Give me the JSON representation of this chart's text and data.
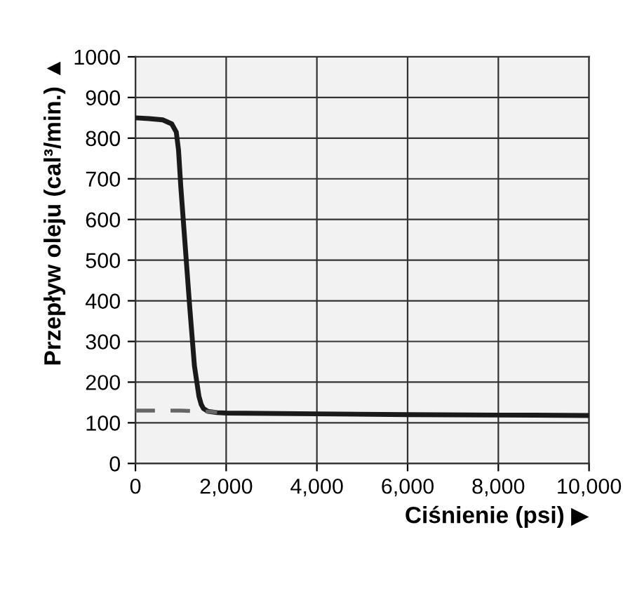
{
  "chart_data": {
    "type": "line",
    "xlabel": "Ciśnienie (psi) ▶",
    "ylabel": "Przepływ oleju (cal³/min.) ▲",
    "series": [
      {
        "color": "#1a1a1a",
        "line_style": "solid",
        "x": [
          0,
          300,
          600,
          800,
          900,
          950,
          1000,
          1100,
          1200,
          1300,
          1400,
          1450,
          1500,
          1600,
          1800,
          2000,
          4000,
          6000,
          8000,
          10000
        ],
        "values": [
          850,
          848,
          845,
          835,
          815,
          770,
          680,
          530,
          380,
          240,
          165,
          145,
          135,
          128,
          125,
          124,
          122,
          120,
          119,
          118
        ]
      },
      {
        "color": "#666666",
        "line_style": "dashed",
        "x": [
          0,
          500,
          1000,
          1500,
          1800
        ],
        "values": [
          130,
          130,
          130,
          128,
          126
        ]
      }
    ],
    "xlim": [
      0,
      10000
    ],
    "xticks": [
      {
        "value": 0,
        "label": "0"
      },
      {
        "value": 2000,
        "label": "2,000"
      },
      {
        "value": 4000,
        "label": "4,000"
      },
      {
        "value": 6000,
        "label": "6,000"
      },
      {
        "value": 8000,
        "label": "8,000"
      },
      {
        "value": 10000,
        "label": "10,000"
      }
    ],
    "ylim": [
      0,
      1000
    ],
    "yticks": [
      0,
      100,
      200,
      300,
      400,
      500,
      600,
      700,
      800,
      900,
      1000
    ],
    "grid": true,
    "marker": "none"
  }
}
